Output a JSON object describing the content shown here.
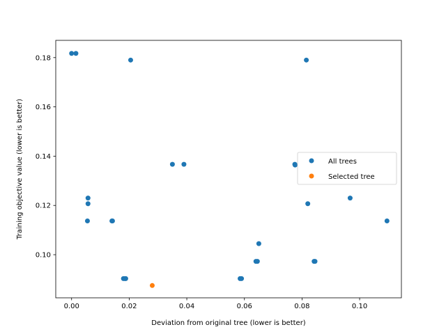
{
  "chart_data": {
    "type": "scatter",
    "xlabel": "Deviation from original tree (lower is better)",
    "ylabel": "Training objective value (lower is better)",
    "xlim": [
      -0.0055,
      0.1145
    ],
    "ylim": [
      0.0825,
      0.187
    ],
    "xticks": [
      0.0,
      0.02,
      0.04,
      0.06,
      0.08,
      0.1
    ],
    "xtick_labels": [
      "0.00",
      "0.02",
      "0.04",
      "0.06",
      "0.08",
      "0.10"
    ],
    "yticks": [
      0.1,
      0.12,
      0.14,
      0.16,
      0.18
    ],
    "ytick_labels": [
      "0.10",
      "0.12",
      "0.14",
      "0.16",
      "0.18"
    ],
    "grid": false,
    "legend_position": "center-right",
    "series": [
      {
        "name": "All trees",
        "color": "#1f77b4",
        "points": [
          [
            0.0,
            0.1817
          ],
          [
            0.0015,
            0.1817
          ],
          [
            0.0205,
            0.179
          ],
          [
            0.0815,
            0.179
          ],
          [
            0.035,
            0.1367
          ],
          [
            0.039,
            0.1367
          ],
          [
            0.0775,
            0.1367
          ],
          [
            0.0776,
            0.1364
          ],
          [
            0.0057,
            0.123
          ],
          [
            0.0057,
            0.1207
          ],
          [
            0.082,
            0.1207
          ],
          [
            0.0967,
            0.123
          ],
          [
            0.0055,
            0.1137
          ],
          [
            0.014,
            0.1137
          ],
          [
            0.0142,
            0.1137
          ],
          [
            0.1095,
            0.1137
          ],
          [
            0.065,
            0.1045
          ],
          [
            0.064,
            0.0973
          ],
          [
            0.0645,
            0.0973
          ],
          [
            0.0842,
            0.0973
          ],
          [
            0.0845,
            0.0973
          ],
          [
            0.018,
            0.0903
          ],
          [
            0.0185,
            0.0903
          ],
          [
            0.0188,
            0.0903
          ],
          [
            0.0585,
            0.0903
          ],
          [
            0.059,
            0.0903
          ]
        ]
      },
      {
        "name": "Selected tree",
        "color": "#ff7f0e",
        "points": [
          [
            0.028,
            0.0875
          ]
        ]
      }
    ]
  }
}
